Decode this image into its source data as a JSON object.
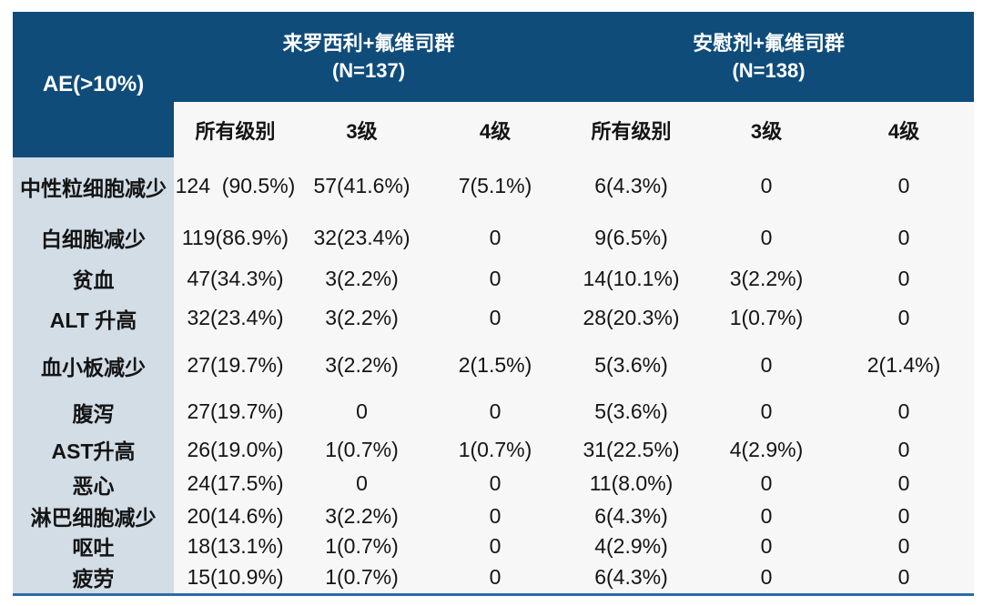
{
  "chart_data": {
    "type": "table",
    "corner_label": "AE(>10%)",
    "column_groups": [
      {
        "title": "来罗西利+氟维司群",
        "n_label": "(N=137)",
        "span": 3
      },
      {
        "title": "安慰剂+氟维司群",
        "n_label": "(N=138)",
        "span": 3
      }
    ],
    "columns": [
      "所有级别",
      "3级",
      "4级",
      "所有级别",
      "3级",
      "4级"
    ],
    "rows": [
      {
        "label": "中性粒细胞减少",
        "values": [
          "124  (90.5%)",
          "57(41.6%)",
          "7(5.1%)",
          "6(4.3%)",
          "0",
          "0"
        ]
      },
      {
        "label": "白细胞减少",
        "values": [
          "119(86.9%)",
          "32(23.4%)",
          "0",
          "9(6.5%)",
          "0",
          "0"
        ]
      },
      {
        "label": "贫血",
        "values": [
          "47(34.3%)",
          "3(2.2%)",
          "0",
          "14(10.1%)",
          "3(2.2%)",
          "0"
        ]
      },
      {
        "label": "ALT 升高",
        "values": [
          "32(23.4%)",
          "3(2.2%)",
          "0",
          "28(20.3%)",
          "1(0.7%)",
          "0"
        ]
      },
      {
        "label": "血小板减少",
        "values": [
          "27(19.7%)",
          "3(2.2%)",
          "2(1.5%)",
          "5(3.6%)",
          "0",
          "2(1.4%)"
        ]
      },
      {
        "label": "腹泻",
        "values": [
          "27(19.7%)",
          "0",
          "0",
          "5(3.6%)",
          "0",
          "0"
        ]
      },
      {
        "label": "AST升高",
        "values": [
          "26(19.0%)",
          "1(0.7%)",
          "1(0.7%)",
          "31(22.5%)",
          "4(2.9%)",
          "0"
        ]
      },
      {
        "label": "恶心",
        "values": [
          "24(17.5%)",
          "0",
          "0",
          "11(8.0%)",
          "0",
          "0"
        ]
      },
      {
        "label": "淋巴细胞减少",
        "values": [
          "20(14.6%)",
          "3(2.2%)",
          "0",
          "6(4.3%)",
          "0",
          "0"
        ]
      },
      {
        "label": "呕吐",
        "values": [
          "18(13.1%)",
          "1(0.7%)",
          "0",
          "4(2.9%)",
          "0",
          "0"
        ]
      },
      {
        "label": "疲劳",
        "values": [
          "15(10.9%)",
          "1(0.7%)",
          "0",
          "6(4.3%)",
          "0",
          "0"
        ]
      }
    ]
  },
  "colors": {
    "header_bg": "#0f4c7a",
    "header_text": "#ffffff",
    "label_col_bg": "#d2dde6",
    "body_bg": "#f7f7f7",
    "body_text": "#141414",
    "bottom_border": "#2b6ca8",
    "page_bg": "#ffffff"
  }
}
